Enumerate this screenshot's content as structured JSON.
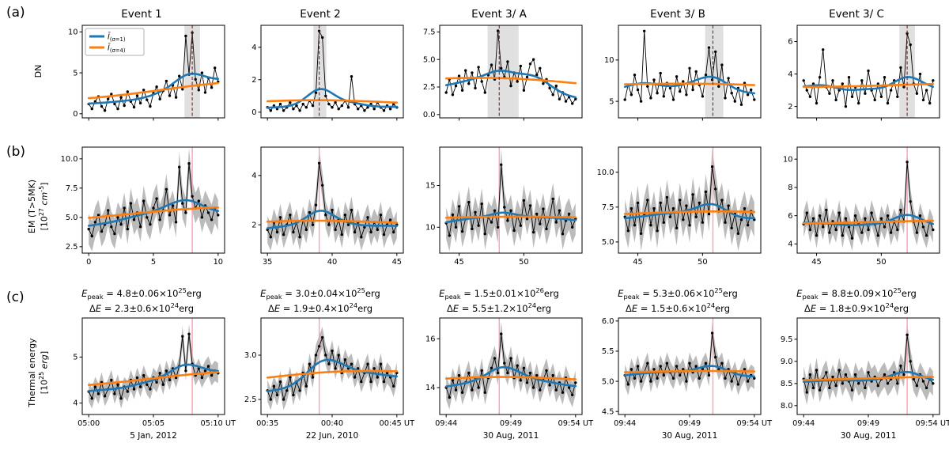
{
  "figure": {
    "panel_rows": [
      {
        "tag": "(a)",
        "ylabel": "DN"
      },
      {
        "tag": "(b)",
        "ylabel": "EM (T>5MK)\n[10^{27} *cm*^{-5}]"
      },
      {
        "tag": "(c)",
        "ylabel": "Thermal energy\n[10^{25} *erg*]"
      }
    ],
    "col_titles": [
      "Event 1",
      "Event 2",
      "Event 3/ A",
      "Event 3/ B",
      "Event 3/ C"
    ],
    "legend": {
      "entries": [
        {
          "label": "*Ī*_{(σ=1)}",
          "color": "#1f77b4"
        },
        {
          "label": "*Ī*_{(σ=4)}",
          "color": "#ff7f0e"
        }
      ]
    },
    "colors": {
      "blue": "#1f77b4",
      "orange": "#ff7f0e",
      "black": "#000000",
      "band_gray": "#777777",
      "shade_gray": "#cccccc",
      "vline_pink": "#ff9fb6",
      "vline_dark_red": "#8b2020",
      "background": "#ffffff"
    },
    "smoothing": {
      "sigma_blue_minutes": 1,
      "sigma_orange_minutes": 4
    }
  },
  "chart_data": [
    {
      "id": "a1",
      "event": "Event 1",
      "type": "line",
      "x_start": 0,
      "x_end": 10,
      "xlim": [
        -0.5,
        10.5
      ],
      "ylim": [
        -0.5,
        10.8
      ],
      "ytick_vals": [
        0,
        5,
        10
      ],
      "ytick_labels": [
        "0",
        "5",
        "10"
      ],
      "xtick_vals": [
        0,
        5,
        10
      ],
      "xtick_labels": null,
      "shade": [
        7.4,
        8.6
      ],
      "vline": 8.0,
      "vline_style": "dashed",
      "band_delta": null,
      "legend": true,
      "y": [
        1.2,
        0.6,
        1.5,
        2.1,
        0.9,
        0.4,
        1.8,
        2.4,
        1.2,
        0.6,
        2.0,
        1.0,
        2.7,
        1.5,
        0.8,
        2.2,
        1.3,
        2.9,
        1.7,
        0.9,
        2.5,
        3.3,
        1.8,
        2.8,
        4.0,
        2.2,
        3.5,
        2.0,
        4.6,
        3.0,
        9.5,
        4.8,
        9.9,
        4.2,
        2.9,
        5.0,
        2.6,
        4.4,
        3.2,
        5.6,
        3.9
      ]
    },
    {
      "id": "a2",
      "event": "Event 2",
      "type": "line",
      "x_start": 35,
      "x_end": 45,
      "xlim": [
        34.5,
        45.5
      ],
      "ylim": [
        -0.35,
        5.35
      ],
      "ytick_vals": [
        0,
        2,
        4
      ],
      "ytick_labels": [
        "0",
        "2",
        "4"
      ],
      "xtick_vals": [
        35,
        40,
        45
      ],
      "xtick_labels": null,
      "shade": [
        38.55,
        39.55
      ],
      "vline": 39.0,
      "vline_style": "dashed",
      "band_delta": null,
      "legend": false,
      "y": [
        0.3,
        0.1,
        0.4,
        0.2,
        0.5,
        0.1,
        0.3,
        0.6,
        0.2,
        0.4,
        0.1,
        0.5,
        0.3,
        0.7,
        0.4,
        1.2,
        5.0,
        4.6,
        1.0,
        0.5,
        0.3,
        0.6,
        0.2,
        0.4,
        0.7,
        0.3,
        2.2,
        0.5,
        0.2,
        0.4,
        0.1,
        0.3,
        0.5,
        0.2,
        0.6,
        0.3,
        0.1,
        0.4,
        0.2,
        0.5,
        0.3
      ]
    },
    {
      "id": "a3",
      "event": "Event 3/ A",
      "type": "line",
      "x_start": 44,
      "x_end": 54,
      "xlim": [
        43.5,
        54.5
      ],
      "ylim": [
        -0.3,
        8.1
      ],
      "ytick_vals": [
        0,
        2.5,
        5,
        7.5
      ],
      "ytick_labels": [
        "0.0",
        "2.5",
        "5.0",
        "7.5"
      ],
      "xtick_vals": [
        45,
        50
      ],
      "xtick_labels": null,
      "shade": [
        47.2,
        49.6
      ],
      "vline": 48.1,
      "vline_style": "dashed",
      "band_delta": null,
      "legend": false,
      "y": [
        2.0,
        3.2,
        1.8,
        2.6,
        3.5,
        2.2,
        4.0,
        2.8,
        3.8,
        2.4,
        4.3,
        3.0,
        2.0,
        3.6,
        4.5,
        3.2,
        7.6,
        4.2,
        3.4,
        4.8,
        2.6,
        3.8,
        3.0,
        4.4,
        2.2,
        3.4,
        4.6,
        5.0,
        3.6,
        4.2,
        2.8,
        3.2,
        2.4,
        1.8,
        2.6,
        1.4,
        2.0,
        1.2,
        1.6,
        1.0,
        1.4
      ]
    },
    {
      "id": "a4",
      "event": "Event 3/ B",
      "type": "line",
      "x_start": 44,
      "x_end": 54,
      "xlim": [
        43.5,
        54.5
      ],
      "ylim": [
        3.0,
        14.2
      ],
      "ytick_vals": [
        5,
        10
      ],
      "ytick_labels": [
        "5",
        "10"
      ],
      "xtick_vals": [
        45,
        50
      ],
      "xtick_labels": null,
      "shade": [
        50.2,
        51.6
      ],
      "vline": 50.8,
      "vline_style": "dashed",
      "band_delta": null,
      "legend": false,
      "y": [
        5.2,
        7.0,
        5.8,
        8.2,
        6.4,
        5.0,
        13.5,
        6.8,
        5.4,
        7.6,
        6.0,
        8.4,
        5.6,
        7.2,
        6.6,
        5.2,
        8.0,
        6.2,
        7.4,
        5.8,
        9.0,
        6.4,
        8.6,
        7.0,
        5.6,
        8.2,
        11.5,
        7.6,
        11.0,
        6.8,
        9.4,
        5.4,
        7.8,
        6.0,
        5.0,
        6.6,
        4.6,
        7.2,
        5.8,
        6.4,
        5.2
      ]
    },
    {
      "id": "a5",
      "event": "Event 3/ C",
      "type": "line",
      "x_start": 44,
      "x_end": 54,
      "xlim": [
        43.5,
        54.5
      ],
      "ylim": [
        1.3,
        7.0
      ],
      "ytick_vals": [
        2,
        4,
        6
      ],
      "ytick_labels": [
        "2",
        "4",
        "6"
      ],
      "xtick_vals": [
        45,
        50
      ],
      "xtick_labels": null,
      "shade": [
        51.4,
        52.6
      ],
      "vline": 52.0,
      "vline_style": "dashed",
      "band_delta": null,
      "legend": false,
      "y": [
        3.6,
        3.0,
        2.6,
        3.4,
        2.2,
        3.8,
        5.5,
        3.2,
        2.8,
        3.6,
        2.4,
        3.0,
        3.4,
        2.0,
        3.8,
        2.6,
        3.2,
        2.2,
        3.6,
        2.8,
        4.2,
        3.0,
        2.4,
        3.4,
        2.6,
        3.8,
        2.2,
        3.0,
        3.6,
        2.6,
        4.4,
        3.2,
        6.5,
        5.8,
        3.4,
        2.8,
        4.0,
        2.4,
        3.0,
        2.2,
        3.6
      ]
    },
    {
      "id": "b1",
      "event": "Event 1",
      "type": "line",
      "x_start": 0,
      "x_end": 10,
      "xlim": [
        -0.5,
        10.5
      ],
      "ylim": [
        1.95,
        11.0
      ],
      "ytick_vals": [
        2.5,
        5,
        7.5,
        10
      ],
      "ytick_labels": [
        "2.5",
        "5.0",
        "7.5",
        "10.0"
      ],
      "xtick_vals": [
        0,
        5,
        10
      ],
      "xtick_labels": [
        "0",
        "5",
        "10"
      ],
      "shade": null,
      "vline": 8.0,
      "vline_style": "solid",
      "band_delta": 1.3,
      "legend": false,
      "y": [
        4.0,
        3.4,
        4.6,
        5.2,
        3.8,
        4.4,
        5.6,
        4.2,
        3.6,
        5.0,
        4.4,
        5.8,
        4.0,
        6.2,
        4.8,
        5.4,
        4.2,
        6.4,
        5.0,
        4.4,
        5.8,
        6.6,
        4.8,
        5.6,
        7.4,
        5.2,
        6.0,
        4.6,
        9.3,
        6.2,
        5.4,
        9.6,
        6.8,
        5.8,
        6.4,
        5.0,
        6.0,
        5.4,
        4.8,
        5.8,
        5.2
      ]
    },
    {
      "id": "b2",
      "event": "Event 2",
      "type": "line",
      "x_start": 35,
      "x_end": 45,
      "xlim": [
        34.5,
        45.5
      ],
      "ylim": [
        0.85,
        5.15
      ],
      "ytick_vals": [
        2,
        4
      ],
      "ytick_labels": [
        "2",
        "4"
      ],
      "xtick_vals": [
        35,
        40,
        45
      ],
      "xtick_labels": [
        "35",
        "40",
        "45"
      ],
      "shade": null,
      "vline": 39.0,
      "vline_style": "solid",
      "band_delta": 0.55,
      "legend": false,
      "y": [
        1.8,
        1.5,
        2.1,
        1.7,
        2.3,
        1.6,
        2.0,
        2.4,
        1.7,
        2.1,
        1.5,
        2.2,
        1.8,
        2.5,
        2.0,
        2.8,
        4.5,
        3.6,
        2.4,
        2.0,
        2.6,
        1.8,
        2.2,
        1.6,
        2.4,
        2.0,
        2.6,
        1.7,
        2.1,
        1.5,
        1.9,
        2.3,
        1.7,
        2.1,
        1.8,
        2.4,
        1.6,
        2.0,
        2.2,
        1.7,
        2.0
      ]
    },
    {
      "id": "b3",
      "event": "Event 3/ A",
      "type": "line",
      "x_start": 44,
      "x_end": 54,
      "xlim": [
        43.5,
        54.5
      ],
      "ylim": [
        6.9,
        19.6
      ],
      "ytick_vals": [
        10,
        15
      ],
      "ytick_labels": [
        "10",
        "15"
      ],
      "xtick_vals": [
        45,
        50
      ],
      "xtick_labels": [
        "45",
        "50"
      ],
      "shade": null,
      "vline": 48.1,
      "vline_style": "solid",
      "band_delta": 1.9,
      "legend": false,
      "y": [
        10.5,
        9.0,
        11.5,
        10.0,
        12.5,
        9.5,
        11.0,
        13.0,
        9.8,
        11.8,
        10.2,
        12.8,
        9.2,
        11.2,
        10.6,
        12.0,
        10.0,
        17.5,
        12.4,
        10.8,
        12.0,
        9.6,
        11.4,
        10.2,
        13.2,
        11.0,
        12.6,
        9.4,
        11.6,
        10.4,
        12.2,
        9.8,
        11.2,
        13.4,
        10.6,
        12.0,
        9.2,
        10.8,
        11.6,
        10.0,
        11.0
      ]
    },
    {
      "id": "b4",
      "event": "Event 3/ B",
      "type": "line",
      "x_start": 44,
      "x_end": 54,
      "xlim": [
        43.5,
        54.5
      ],
      "ylim": [
        4.2,
        11.8
      ],
      "ytick_vals": [
        5,
        7.5,
        10
      ],
      "ytick_labels": [
        "5.0",
        "7.5",
        "10.0"
      ],
      "xtick_vals": [
        45,
        50
      ],
      "xtick_labels": [
        "45",
        "50"
      ],
      "shade": null,
      "vline": 50.8,
      "vline_style": "solid",
      "band_delta": 1.25,
      "legend": false,
      "y": [
        6.8,
        5.8,
        7.4,
        6.2,
        7.8,
        5.6,
        7.0,
        8.0,
        6.2,
        7.4,
        5.8,
        7.8,
        6.4,
        8.2,
        6.8,
        7.4,
        6.0,
        8.0,
        6.6,
        7.6,
        6.2,
        8.4,
        6.8,
        7.8,
        6.4,
        8.6,
        7.0,
        10.4,
        8.8,
        7.2,
        8.0,
        6.4,
        7.6,
        6.0,
        7.0,
        5.6,
        6.6,
        7.4,
        6.2,
        7.2,
        6.6
      ]
    },
    {
      "id": "b5",
      "event": "Event 3/ C",
      "type": "line",
      "x_start": 44,
      "x_end": 54,
      "xlim": [
        43.5,
        54.5
      ],
      "ylim": [
        3.35,
        10.85
      ],
      "ytick_vals": [
        4,
        6,
        8,
        10
      ],
      "ytick_labels": [
        "4",
        "6",
        "8",
        "10"
      ],
      "xtick_vals": [
        45,
        50
      ],
      "xtick_labels": [
        "45",
        "50"
      ],
      "shade": null,
      "vline": 52.0,
      "vline_style": "solid",
      "band_delta": 0.9,
      "legend": false,
      "y": [
        5.4,
        6.2,
        5.0,
        5.8,
        4.6,
        6.0,
        5.2,
        6.4,
        4.8,
        5.6,
        5.0,
        6.2,
        4.6,
        5.8,
        5.2,
        4.4,
        6.0,
        5.4,
        4.8,
        5.8,
        5.0,
        6.2,
        5.4,
        4.6,
        5.8,
        5.2,
        6.0,
        4.8,
        5.6,
        5.0,
        6.4,
        5.6,
        9.8,
        7.0,
        5.6,
        4.8,
        6.0,
        5.2,
        4.6,
        5.6,
        5.0
      ]
    },
    {
      "id": "c1",
      "event": "Event 1",
      "type": "line",
      "x_start": 0,
      "x_end": 10,
      "xlim": [
        -0.5,
        10.5
      ],
      "ylim": [
        3.75,
        5.85
      ],
      "ytick_vals": [
        4,
        5
      ],
      "ytick_labels": [
        "4",
        "5"
      ],
      "xtick_vals": [
        0,
        5,
        10
      ],
      "xtick_labels": [
        "05:00",
        "05:05",
        "05:10 UT"
      ],
      "shade": null,
      "vline": 8.0,
      "vline_style": "solid",
      "band_delta": 0.22,
      "legend": false,
      "title_lines": [
        "*E*_{peak} = 4.8±0.06×10^{25}erg",
        "Δ*E* = 2.3±0.6×10^{24}erg"
      ],
      "xlabel": "5 Jan, 2012",
      "y": [
        4.25,
        4.1,
        4.35,
        4.2,
        4.45,
        4.15,
        4.3,
        4.5,
        4.2,
        4.4,
        4.1,
        4.35,
        4.25,
        4.5,
        4.3,
        4.55,
        4.35,
        4.6,
        4.4,
        4.3,
        4.55,
        4.45,
        4.65,
        4.4,
        4.7,
        4.5,
        4.75,
        4.55,
        4.8,
        5.45,
        4.7,
        5.5,
        4.85,
        4.6,
        4.75,
        4.55,
        4.7,
        4.8,
        4.6,
        4.7,
        4.65
      ]
    },
    {
      "id": "c2",
      "event": "Event 2",
      "type": "line",
      "x_start": 35,
      "x_end": 45,
      "xlim": [
        34.5,
        45.5
      ],
      "ylim": [
        2.33,
        3.42
      ],
      "ytick_vals": [
        2.5,
        3
      ],
      "ytick_labels": [
        "2.5",
        "3.0"
      ],
      "xtick_vals": [
        35,
        40,
        45
      ],
      "xtick_labels": [
        "00:35",
        "00:40",
        "00:45 UT"
      ],
      "shade": null,
      "vline": 39.0,
      "vline_style": "solid",
      "band_delta": 0.12,
      "legend": false,
      "title_lines": [
        "*E*_{peak} = 3.0±0.04×10^{25}erg",
        "Δ*E* = 1.9±0.4×10^{24}erg"
      ],
      "xlabel": "22 Jun, 2010",
      "y": [
        2.6,
        2.5,
        2.65,
        2.55,
        2.7,
        2.5,
        2.6,
        2.75,
        2.55,
        2.7,
        2.6,
        2.8,
        2.65,
        2.9,
        2.75,
        3.0,
        3.1,
        3.2,
        3.0,
        2.9,
        3.05,
        2.85,
        3.0,
        2.8,
        2.95,
        2.85,
        2.9,
        2.75,
        2.85,
        2.7,
        2.8,
        2.9,
        2.7,
        2.85,
        2.75,
        2.9,
        2.7,
        2.8,
        2.75,
        2.65,
        2.8
      ]
    },
    {
      "id": "c3",
      "event": "Event 3/ A",
      "type": "line",
      "x_start": 44,
      "x_end": 54,
      "xlim": [
        43.5,
        54.5
      ],
      "ylim": [
        12.9,
        16.85
      ],
      "ytick_vals": [
        14,
        16
      ],
      "ytick_labels": [
        "14",
        "16"
      ],
      "xtick_vals": [
        44,
        49,
        54
      ],
      "xtick_labels": [
        "09:44",
        "09:49",
        "09:54 UT"
      ],
      "shade": null,
      "vline": 48.1,
      "vline_style": "solid",
      "band_delta": 0.5,
      "legend": false,
      "title_lines": [
        "*E*_{peak} = 1.5±0.01×10^{26}erg",
        "Δ*E* = 5.5±1.2×10^{24}erg"
      ],
      "xlabel": "30 Aug, 2011",
      "y": [
        14.0,
        13.6,
        14.3,
        13.9,
        14.5,
        13.8,
        14.2,
        14.6,
        13.9,
        14.4,
        14.0,
        14.7,
        13.8,
        14.4,
        14.8,
        15.2,
        14.6,
        16.2,
        15.0,
        14.6,
        15.2,
        14.4,
        14.9,
        14.3,
        14.8,
        14.2,
        14.6,
        14.0,
        14.5,
        13.9,
        14.3,
        14.7,
        14.1,
        14.5,
        13.9,
        14.2,
        13.8,
        14.4,
        14.0,
        13.7,
        14.2
      ]
    },
    {
      "id": "c4",
      "event": "Event 3/ B",
      "type": "line",
      "x_start": 44,
      "x_end": 54,
      "xlim": [
        43.5,
        54.5
      ],
      "ylim": [
        4.45,
        6.05
      ],
      "ytick_vals": [
        4.5,
        5,
        5.5,
        6
      ],
      "ytick_labels": [
        "4.5",
        "5.0",
        "5.5",
        "6.0"
      ],
      "xtick_vals": [
        44,
        49,
        54
      ],
      "xtick_labels": [
        "09:44",
        "09:49",
        "09:54 UT"
      ],
      "shade": null,
      "vline": 50.8,
      "vline_style": "solid",
      "band_delta": 0.18,
      "legend": false,
      "title_lines": [
        "*E*_{peak} = 5.3±0.06×10^{25}erg",
        "Δ*E* = 1.5±0.6×10^{24}erg"
      ],
      "xlabel": "30 Aug, 2011",
      "y": [
        5.1,
        4.95,
        5.2,
        5.05,
        5.25,
        5.0,
        5.15,
        5.3,
        5.0,
        5.2,
        5.05,
        5.25,
        5.1,
        5.3,
        5.15,
        5.05,
        5.25,
        5.1,
        5.2,
        5.0,
        5.3,
        5.15,
        5.25,
        5.05,
        5.2,
        5.3,
        5.1,
        5.8,
        5.4,
        5.2,
        5.3,
        5.05,
        5.2,
        5.0,
        5.15,
        4.95,
        5.1,
        5.2,
        5.0,
        5.1,
        5.05
      ]
    },
    {
      "id": "c5",
      "event": "Event 3/ C",
      "type": "line",
      "x_start": 44,
      "x_end": 54,
      "xlim": [
        43.5,
        54.5
      ],
      "ylim": [
        7.8,
        9.98
      ],
      "ytick_vals": [
        8,
        8.5,
        9,
        9.5
      ],
      "ytick_labels": [
        "8.0",
        "8.5",
        "9.0",
        "9.5"
      ],
      "xtick_vals": [
        44,
        49,
        54
      ],
      "xtick_labels": [
        "09:44",
        "09:49",
        "09:54 UT"
      ],
      "shade": null,
      "vline": 52.0,
      "vline_style": "solid",
      "band_delta": 0.28,
      "legend": false,
      "title_lines": [
        "*E*_{peak} = 8.8±0.09×10^{25}erg",
        "Δ*E* = 1.8±0.9×10^{24}erg"
      ],
      "xlabel": "30 Aug, 2011",
      "y": [
        8.6,
        8.3,
        8.7,
        8.4,
        8.8,
        8.35,
        8.6,
        8.75,
        8.4,
        8.65,
        8.45,
        8.8,
        8.5,
        8.7,
        8.55,
        8.35,
        8.7,
        8.5,
        8.6,
        8.4,
        8.75,
        8.55,
        8.65,
        8.45,
        8.6,
        8.7,
        8.5,
        8.6,
        8.75,
        8.5,
        8.9,
        8.7,
        9.6,
        9.0,
        8.6,
        8.45,
        8.7,
        8.55,
        8.4,
        8.6,
        8.5
      ]
    }
  ]
}
